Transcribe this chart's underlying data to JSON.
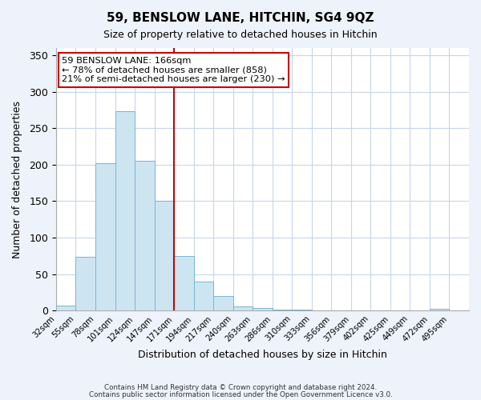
{
  "title": "59, BENSLOW LANE, HITCHIN, SG4 9QZ",
  "subtitle": "Size of property relative to detached houses in Hitchin",
  "xlabel": "Distribution of detached houses by size in Hitchin",
  "ylabel": "Number of detached properties",
  "bar_labels": [
    "32sqm",
    "55sqm",
    "78sqm",
    "101sqm",
    "124sqm",
    "147sqm",
    "171sqm",
    "194sqm",
    "217sqm",
    "240sqm",
    "263sqm",
    "286sqm",
    "310sqm",
    "333sqm",
    "356sqm",
    "379sqm",
    "402sqm",
    "425sqm",
    "449sqm",
    "472sqm",
    "495sqm"
  ],
  "bar_values": [
    7,
    74,
    202,
    273,
    205,
    150,
    75,
    40,
    20,
    6,
    4,
    1,
    1,
    0,
    0,
    0,
    0,
    0,
    0,
    2,
    0
  ],
  "bar_color": "#cce5f0",
  "bar_edge_color": "#7ab5d0",
  "vline_color": "#cc0000",
  "annotation_text": "59 BENSLOW LANE: 166sqm\n← 78% of detached houses are smaller (858)\n21% of semi-detached houses are larger (230) →",
  "annotation_box_color": "#ffffff",
  "annotation_box_edge": "#cc0000",
  "ylim": [
    0,
    360
  ],
  "yticks": [
    0,
    50,
    100,
    150,
    200,
    250,
    300,
    350
  ],
  "footer_line1": "Contains HM Land Registry data © Crown copyright and database right 2024.",
  "footer_line2": "Contains public sector information licensed under the Open Government Licence v3.0.",
  "bg_color": "#eef2fb",
  "plot_bg_color": "#ffffff",
  "grid_color": "#c8d4e8",
  "title_fontsize": 11,
  "subtitle_fontsize": 9
}
